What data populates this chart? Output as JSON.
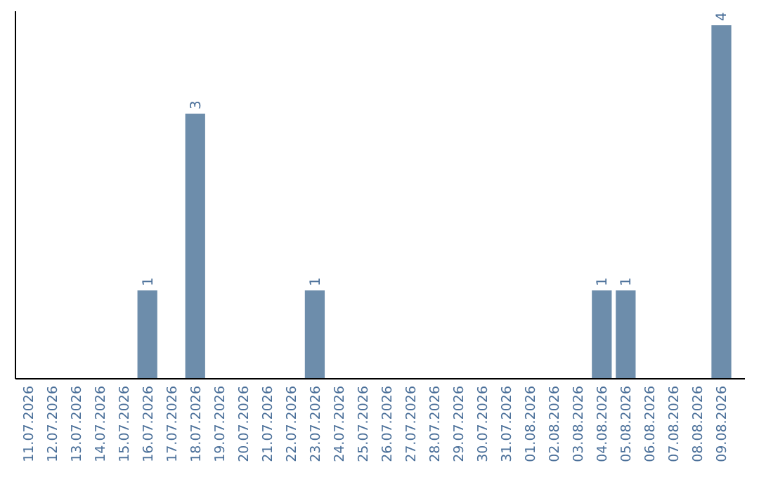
{
  "chart_data": {
    "type": "bar",
    "categories": [
      "11.07.2026",
      "12.07.2026",
      "13.07.2026",
      "14.07.2026",
      "15.07.2026",
      "16.07.2026",
      "17.07.2026",
      "18.07.2026",
      "19.07.2026",
      "20.07.2026",
      "21.07.2026",
      "22.07.2026",
      "23.07.2026",
      "24.07.2026",
      "25.07.2026",
      "26.07.2026",
      "27.07.2026",
      "28.07.2026",
      "29.07.2026",
      "30.07.2026",
      "31.07.2026",
      "01.08.2026",
      "02.08.2026",
      "03.08.2026",
      "04.08.2026",
      "05.08.2026",
      "06.08.2026",
      "07.08.2026",
      "08.08.2026",
      "09.08.2026"
    ],
    "values": [
      0,
      0,
      0,
      0,
      0,
      1,
      0,
      3,
      0,
      0,
      0,
      0,
      1,
      0,
      0,
      0,
      0,
      0,
      0,
      0,
      0,
      0,
      0,
      0,
      1,
      1,
      0,
      0,
      0,
      4
    ],
    "value_labels": [
      null,
      null,
      null,
      null,
      null,
      "1",
      null,
      "3",
      null,
      null,
      null,
      null,
      "1",
      null,
      null,
      null,
      null,
      null,
      null,
      null,
      null,
      null,
      null,
      null,
      "1",
      "1",
      null,
      null,
      null,
      "4"
    ],
    "color": "#6d8dab",
    "tick_labels": "x"
  }
}
